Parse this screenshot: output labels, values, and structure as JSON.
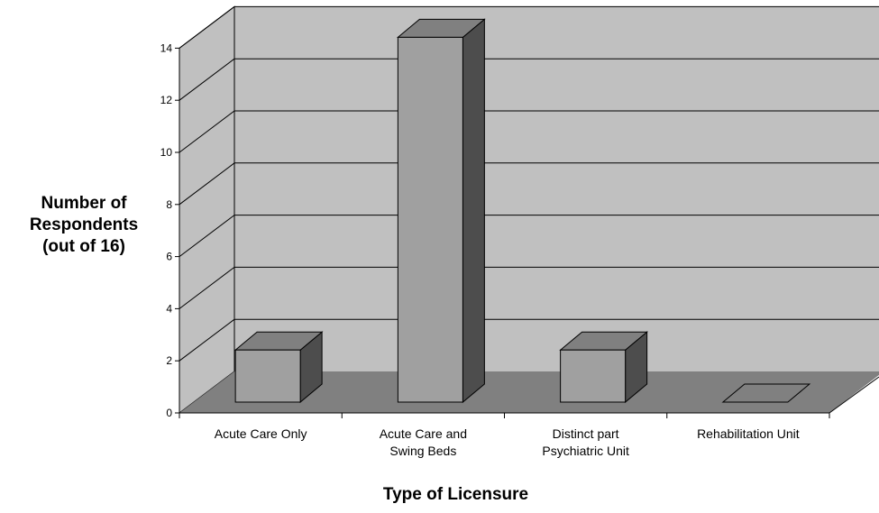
{
  "chart_data": {
    "type": "bar",
    "style": "3d",
    "categories": [
      "Acute Care Only",
      "Acute Care and Swing Beds",
      "Distinct part Psychiatric Unit",
      "Rehabilitation Unit"
    ],
    "category_lines": [
      [
        "Acute Care Only"
      ],
      [
        "Acute Care and",
        "Swing Beds"
      ],
      [
        "Distinct part",
        "Psychiatric Unit"
      ],
      [
        "Rehabilitation Unit"
      ]
    ],
    "values": [
      2,
      14,
      2,
      0
    ],
    "ylim": [
      0,
      14
    ],
    "yticks": [
      "0",
      "2",
      "4",
      "6",
      "8",
      "10",
      "12",
      "14"
    ],
    "ylabel_lines": [
      "Number of",
      "Respondents",
      "(out of 16)"
    ],
    "xlabel": "Type of Licensure",
    "grid": true,
    "legend": "none",
    "colors": {
      "wall": "#c0c0c0",
      "floor": "#808080",
      "bar_front": "#a0a0a0",
      "bar_top": "#808080",
      "bar_side": "#4d4d4d",
      "gridline": "#000000"
    }
  }
}
